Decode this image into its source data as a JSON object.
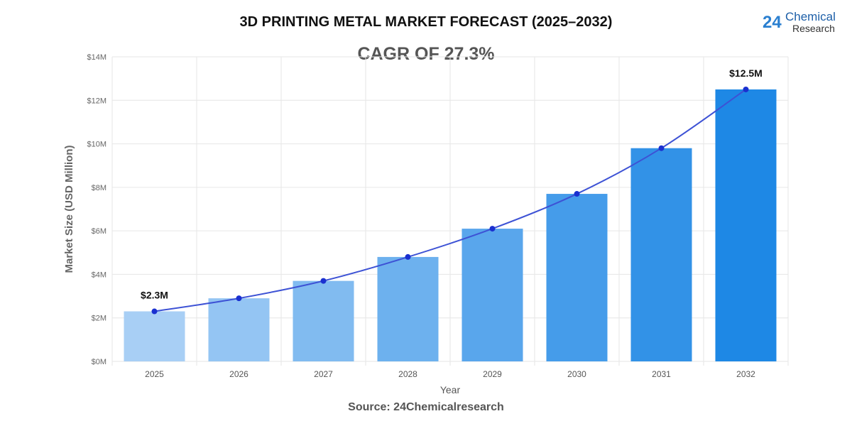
{
  "title": "3D PRINTING METAL MARKET FORECAST (2025–2032)",
  "subtitle": "CAGR OF 27.3%",
  "source": "Source: 24Chemicalresearch",
  "logo": {
    "number": "24",
    "line1": "Chemical",
    "line2": "Research"
  },
  "chart_data": {
    "type": "bar",
    "title": "3D PRINTING METAL MARKET FORECAST (2025–2032)",
    "xlabel": "Year",
    "ylabel": "Market Size (USD Million)",
    "categories": [
      "2025",
      "2026",
      "2027",
      "2028",
      "2029",
      "2030",
      "2031",
      "2032"
    ],
    "values": [
      2.3,
      2.9,
      3.7,
      4.8,
      6.1,
      7.7,
      9.8,
      12.5
    ],
    "overlay_line": true,
    "ylim": [
      0,
      14
    ],
    "yticks": [
      "$0M",
      "$2M",
      "$4M",
      "$6M",
      "$8M",
      "$10M",
      "$12M",
      "$14M"
    ],
    "data_labels": [
      {
        "category": "2025",
        "text": "$2.3M"
      },
      {
        "category": "2032",
        "text": "$12.5M"
      }
    ],
    "grid": true,
    "colors": {
      "bar_start": "#a8cff5",
      "bar_end": "#1e88e5",
      "line": "#3d52d5",
      "point": "#1a30d0"
    }
  }
}
